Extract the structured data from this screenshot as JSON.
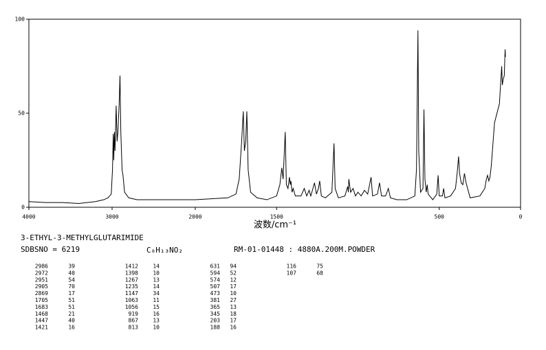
{
  "chart_data": {
    "type": "line",
    "xlabel": "波数/cm⁻¹",
    "xlim": [
      4000,
      0
    ],
    "ylim": [
      0,
      100
    ],
    "xscale_break": 2000,
    "xticks": [
      4000,
      3000,
      2000,
      1500,
      500,
      0
    ],
    "yticks": [
      0,
      50,
      100
    ],
    "color": "#000000",
    "x": [
      4000,
      3800,
      3600,
      3400,
      3200,
      3100,
      3050,
      3010,
      2995,
      2986,
      2980,
      2972,
      2965,
      2951,
      2940,
      2930,
      2915,
      2905,
      2895,
      2880,
      2869,
      2850,
      2800,
      2700,
      2500,
      2300,
      2100,
      2000,
      1900,
      1800,
      1750,
      1730,
      1715,
      1705,
      1698,
      1690,
      1683,
      1675,
      1660,
      1620,
      1560,
      1500,
      1480,
      1468,
      1460,
      1447,
      1440,
      1430,
      1421,
      1416,
      1412,
      1405,
      1398,
      1385,
      1350,
      1330,
      1315,
      1300,
      1290,
      1280,
      1267,
      1255,
      1243,
      1235,
      1225,
      1200,
      1160,
      1147,
      1140,
      1120,
      1080,
      1063,
      1059,
      1056,
      1045,
      1030,
      1015,
      1000,
      980,
      960,
      940,
      919,
      910,
      880,
      867,
      855,
      830,
      813,
      800,
      760,
      700,
      650,
      640,
      635,
      631,
      626,
      615,
      600,
      594,
      588,
      580,
      574,
      568,
      540,
      515,
      507,
      500,
      480,
      473,
      465,
      430,
      400,
      390,
      381,
      375,
      365,
      355,
      345,
      335,
      310,
      250,
      220,
      210,
      203,
      195,
      188,
      180,
      160,
      130,
      116,
      112,
      107,
      100,
      95,
      93
    ],
    "values": [
      3,
      2.5,
      2.5,
      2,
      3,
      4,
      5,
      7,
      20,
      39,
      25,
      40,
      30,
      54,
      35,
      40,
      55,
      70,
      40,
      20,
      17,
      8,
      5,
      4,
      4,
      4,
      4,
      4,
      4.5,
      5,
      7,
      15,
      35,
      51,
      30,
      35,
      51,
      20,
      8,
      5,
      4,
      6,
      12,
      21,
      15,
      40,
      12,
      10,
      16,
      12,
      14,
      8,
      10,
      6,
      6,
      10,
      6,
      9,
      6,
      9,
      13,
      7,
      10,
      14,
      6,
      5,
      8,
      34,
      10,
      5,
      6,
      11,
      8,
      15,
      8,
      10,
      6,
      8,
      6,
      9,
      7,
      16,
      6,
      7,
      13,
      6,
      6,
      10,
      5,
      4,
      4,
      6,
      20,
      60,
      94,
      30,
      8,
      10,
      52,
      15,
      8,
      12,
      7,
      4,
      7,
      17,
      6,
      6,
      10,
      5,
      6,
      10,
      18,
      27,
      18,
      13,
      12,
      18,
      13,
      5,
      6,
      10,
      15,
      17,
      14,
      16,
      22,
      45,
      55,
      75,
      65,
      68,
      70,
      84,
      80
    ]
  },
  "info": {
    "compound": "3-ETHYL-3-METHYLGLUTARIMIDE",
    "sdbs_no": "SDBSNO = 6219",
    "formula": "C₈H₁₃NO₂",
    "source": "RM-01-01448 : 4880A.200M.POWDER",
    "peaks": [
      [
        2986,
        39
      ],
      [
        2972,
        40
      ],
      [
        2951,
        54
      ],
      [
        2905,
        70
      ],
      [
        2869,
        17
      ],
      [
        1705,
        51
      ],
      [
        1683,
        51
      ],
      [
        1468,
        21
      ],
      [
        1447,
        40
      ],
      [
        1421,
        16
      ],
      [
        1412,
        14
      ],
      [
        1398,
        10
      ],
      [
        1267,
        13
      ],
      [
        1235,
        14
      ],
      [
        1147,
        34
      ],
      [
        1063,
        11
      ],
      [
        1056,
        15
      ],
      [
        919,
        16
      ],
      [
        867,
        13
      ],
      [
        813,
        10
      ],
      [
        631,
        94
      ],
      [
        594,
        52
      ],
      [
        574,
        12
      ],
      [
        507,
        17
      ],
      [
        473,
        10
      ],
      [
        381,
        27
      ],
      [
        365,
        13
      ],
      [
        345,
        18
      ],
      [
        203,
        17
      ],
      [
        188,
        16
      ],
      [
        116,
        75
      ],
      [
        107,
        68
      ]
    ]
  }
}
